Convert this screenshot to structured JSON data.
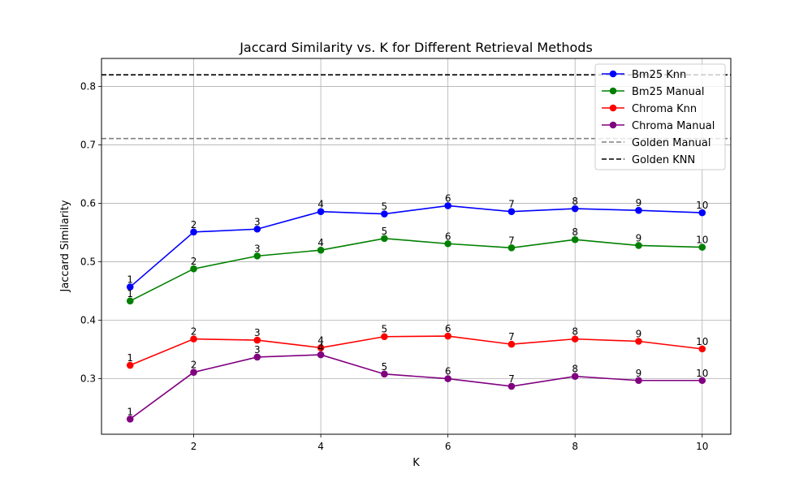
{
  "chart_data": {
    "type": "line",
    "title": "Jaccard Similarity vs. K for Different Retrieval Methods",
    "xlabel": "K",
    "ylabel": "Jaccard Similarity",
    "x": [
      1,
      2,
      3,
      4,
      5,
      6,
      7,
      8,
      9,
      10
    ],
    "xlim": [
      0.55,
      10.45
    ],
    "ylim": [
      0.205,
      0.848
    ],
    "xticks": [
      2,
      4,
      6,
      8,
      10
    ],
    "yticks": [
      0.3,
      0.4,
      0.5,
      0.6,
      0.7,
      0.8
    ],
    "ytick_labels": [
      "0.3",
      "0.4",
      "0.5",
      "0.6",
      "0.7",
      "0.8"
    ],
    "grid": true,
    "legend_position": "upper right",
    "series": [
      {
        "name": "Bm25 Knn",
        "color": "#0000ff",
        "marker": "circle",
        "values": [
          0.457,
          0.551,
          0.556,
          0.586,
          0.582,
          0.596,
          0.586,
          0.591,
          0.588,
          0.584
        ]
      },
      {
        "name": "Bm25 Manual",
        "color": "#008000",
        "marker": "circle",
        "values": [
          0.433,
          0.488,
          0.51,
          0.52,
          0.54,
          0.531,
          0.524,
          0.538,
          0.528,
          0.525
        ]
      },
      {
        "name": "Chroma Knn",
        "color": "#ff0000",
        "marker": "circle",
        "values": [
          0.323,
          0.368,
          0.366,
          0.353,
          0.372,
          0.373,
          0.359,
          0.368,
          0.364,
          0.351
        ]
      },
      {
        "name": "Chroma Manual",
        "color": "#800080",
        "marker": "circle",
        "values": [
          0.231,
          0.311,
          0.337,
          0.341,
          0.308,
          0.3,
          0.287,
          0.304,
          0.297,
          0.297
        ]
      }
    ],
    "reference_lines": [
      {
        "name": "Golden Manual",
        "value": 0.711,
        "color": "#808080",
        "style": "dashed"
      },
      {
        "name": "Golden KNN",
        "value": 0.82,
        "color": "#000000",
        "style": "dashed"
      }
    ],
    "point_labels": [
      "1",
      "2",
      "3",
      "4",
      "5",
      "6",
      "7",
      "8",
      "9",
      "10"
    ]
  }
}
